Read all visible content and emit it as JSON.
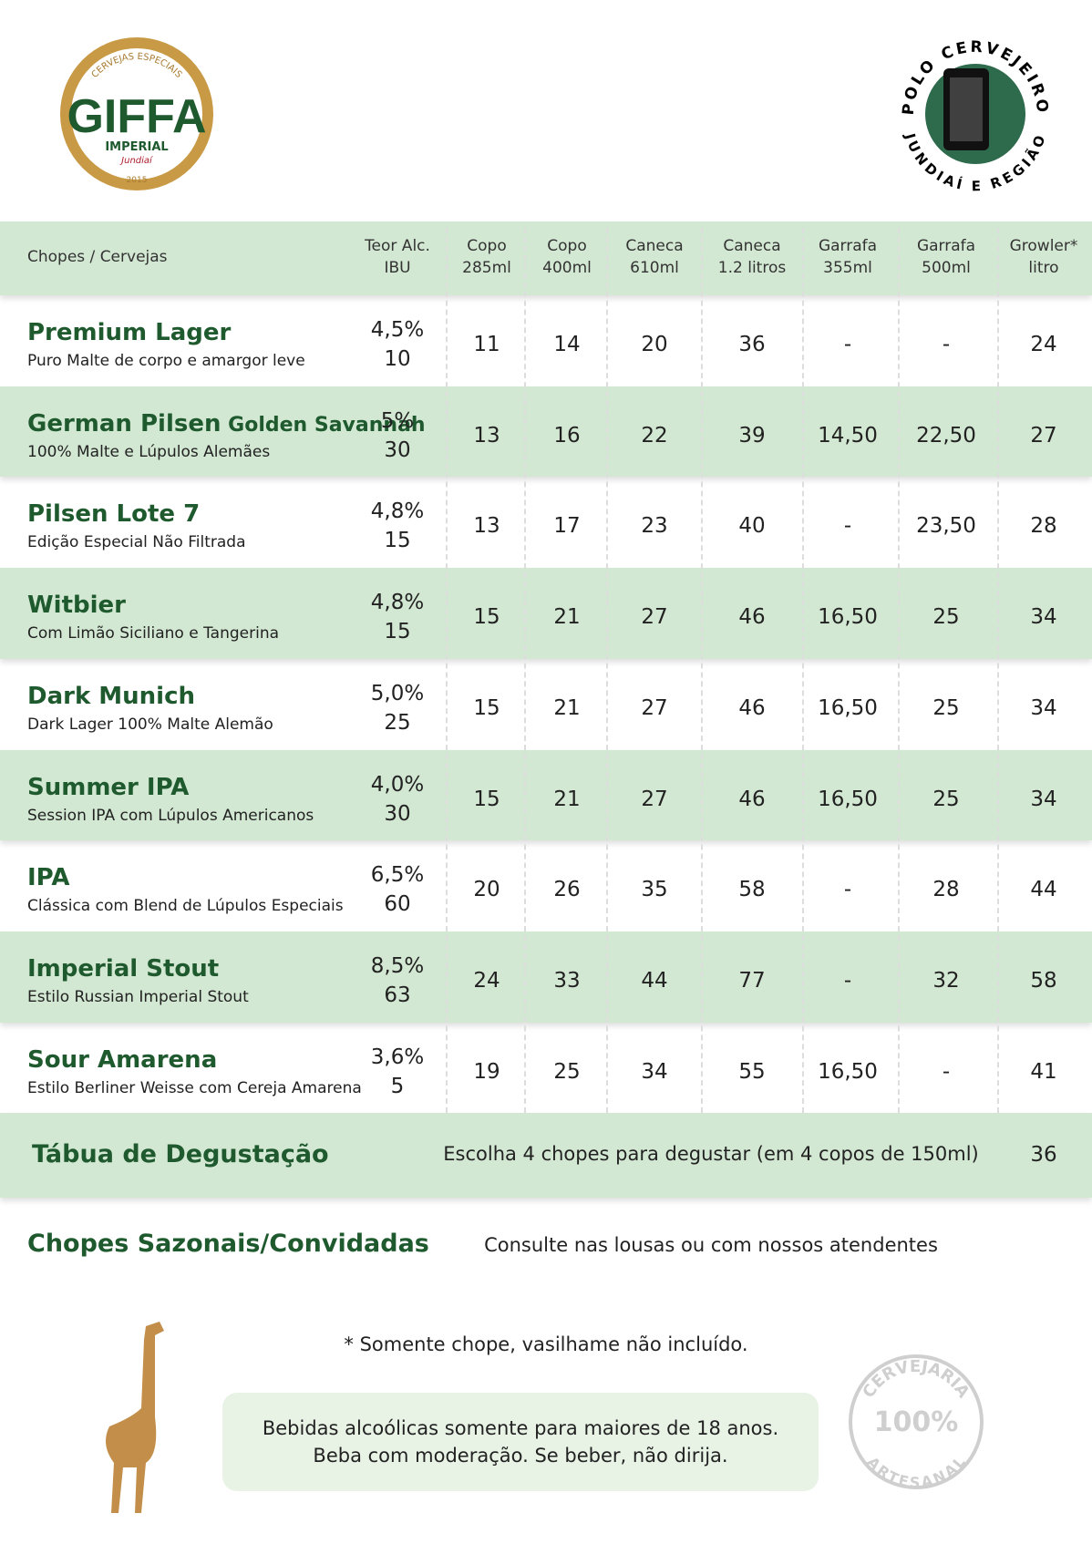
{
  "logo_left": {
    "top": "CERVEJAS ESPECIAIS",
    "name": "GIFFA",
    "sub": "IMPERIAL",
    "city": "Jundiaí",
    "year": "2015"
  },
  "logo_right": {
    "top": "POLO CERVEJEIRO",
    "bottom": "JUNDIAÍ E REGIÃO"
  },
  "table": {
    "header": [
      "Chopes / Cervejas",
      [
        "Teor Alc.",
        "IBU"
      ],
      [
        "Copo",
        "285ml"
      ],
      [
        "Copo",
        "400ml"
      ],
      [
        "Caneca",
        "610ml"
      ],
      [
        "Caneca",
        "1.2 litros"
      ],
      [
        "Garrafa",
        "355ml"
      ],
      [
        "Garrafa",
        "500ml"
      ],
      [
        "Growler*",
        "litro"
      ]
    ],
    "rows": [
      {
        "name": "Premium Lager",
        "desc": "Puro Malte de corpo e amargor leve",
        "abv": "4,5%",
        "ibu": 10,
        "prices": [
          "11",
          "14",
          "20",
          "36",
          "-",
          "-",
          "24"
        ]
      },
      {
        "name": "German Pilsen",
        "name_small": "Golden Savannah",
        "desc": "100% Malte e Lúpulos Alemães",
        "abv": "5%",
        "ibu": 30,
        "prices": [
          "13",
          "16",
          "22",
          "39",
          "14,50",
          "22,50",
          "27"
        ]
      },
      {
        "name": "Pilsen Lote 7",
        "desc": "Edição Especial Não Filtrada",
        "abv": "4,8%",
        "ibu": 15,
        "prices": [
          "13",
          "17",
          "23",
          "40",
          "-",
          "23,50",
          "28"
        ]
      },
      {
        "name": "Witbier",
        "desc": "Com Limão Siciliano e Tangerina",
        "abv": "4,8%",
        "ibu": 15,
        "prices": [
          "15",
          "21",
          "27",
          "46",
          "16,50",
          "25",
          "34"
        ]
      },
      {
        "name": "Dark Munich",
        "desc": "Dark Lager 100% Malte Alemão",
        "abv": "5,0%",
        "ibu": 25,
        "prices": [
          "15",
          "21",
          "27",
          "46",
          "16,50",
          "25",
          "34"
        ]
      },
      {
        "name": "Summer IPA",
        "desc": "Session IPA com Lúpulos Americanos",
        "abv": "4,0%",
        "ibu": 30,
        "prices": [
          "15",
          "21",
          "27",
          "46",
          "16,50",
          "25",
          "34"
        ]
      },
      {
        "name": "IPA",
        "desc": "Clássica com Blend de Lúpulos Especiais",
        "abv": "6,5%",
        "ibu": 60,
        "prices": [
          "20",
          "26",
          "35",
          "58",
          "-",
          "28",
          "44"
        ]
      },
      {
        "name": "Imperial Stout",
        "desc": "Estilo Russian Imperial Stout",
        "abv": "8,5%",
        "ibu": 63,
        "prices": [
          "24",
          "33",
          "44",
          "77",
          "-",
          "32",
          "58"
        ]
      },
      {
        "name": "Sour Amarena",
        "desc": "Estilo Berliner Weisse com Cereja Amarena",
        "abv": "3,6%",
        "ibu": 5,
        "prices": [
          "19",
          "25",
          "34",
          "55",
          "16,50",
          "-",
          "41"
        ]
      }
    ]
  },
  "tasting": {
    "name": "Tábua de Degustação",
    "desc": "Escolha 4 chopes para degustar (em 4 copos de 150ml)",
    "price": "36"
  },
  "seasonal": {
    "name": "Chopes Sazonais/Convidadas",
    "desc": "Consulte nas lousas ou com nossos atendentes"
  },
  "footnote": "* Somente chope, vasilhame não incluído.",
  "warning": [
    "Bebidas alcoólicas somente para maiores de 18 anos.",
    "Beba com moderação. Se beber, não dirija."
  ],
  "badge": {
    "top": "CERVEJARIA",
    "mid": "100%",
    "bottom": "ARTESANAL"
  }
}
